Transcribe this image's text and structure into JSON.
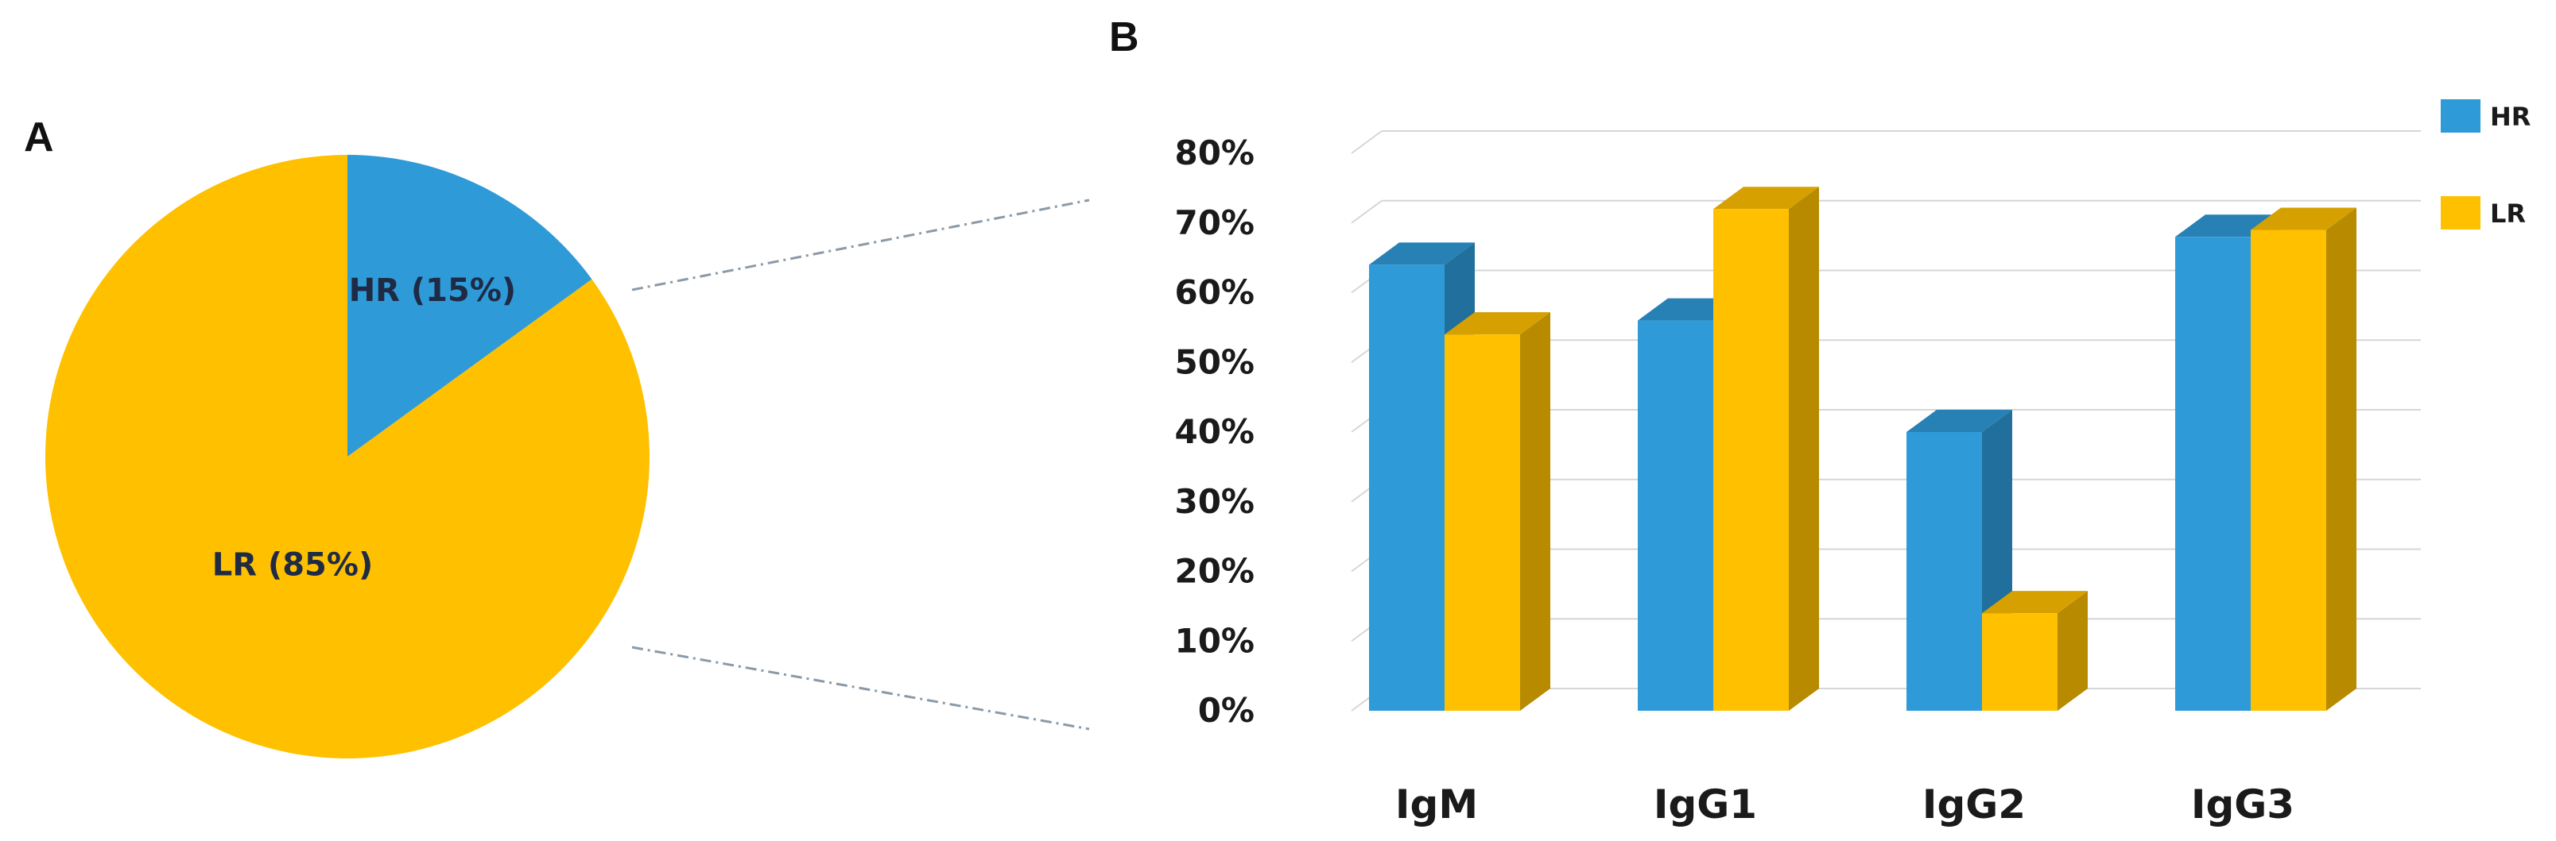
{
  "panels": {
    "a_label": "A",
    "b_label": "B"
  },
  "chart_data": [
    {
      "type": "pie",
      "panel": "A",
      "slices": [
        {
          "label": "HR (15%)",
          "value": 15,
          "color": "#2e9ad8"
        },
        {
          "label": "LR (85%)",
          "value": 85,
          "color": "#ffc000"
        }
      ]
    },
    {
      "type": "bar",
      "panel": "B",
      "categories": [
        "IgM",
        "IgG1",
        "IgG2",
        "IgG3"
      ],
      "series": [
        {
          "name": "HR",
          "values": [
            64,
            56,
            40,
            68
          ],
          "color": "#2e9ad8"
        },
        {
          "name": "LR",
          "values": [
            54,
            72,
            14,
            69
          ],
          "color": "#ffc000"
        }
      ],
      "ylim": [
        0,
        80
      ],
      "yticks": [
        "0%",
        "10%",
        "20%",
        "30%",
        "40%",
        "50%",
        "60%",
        "70%",
        "80%"
      ],
      "grid": true,
      "legend": "top-right",
      "style": "3d"
    }
  ]
}
